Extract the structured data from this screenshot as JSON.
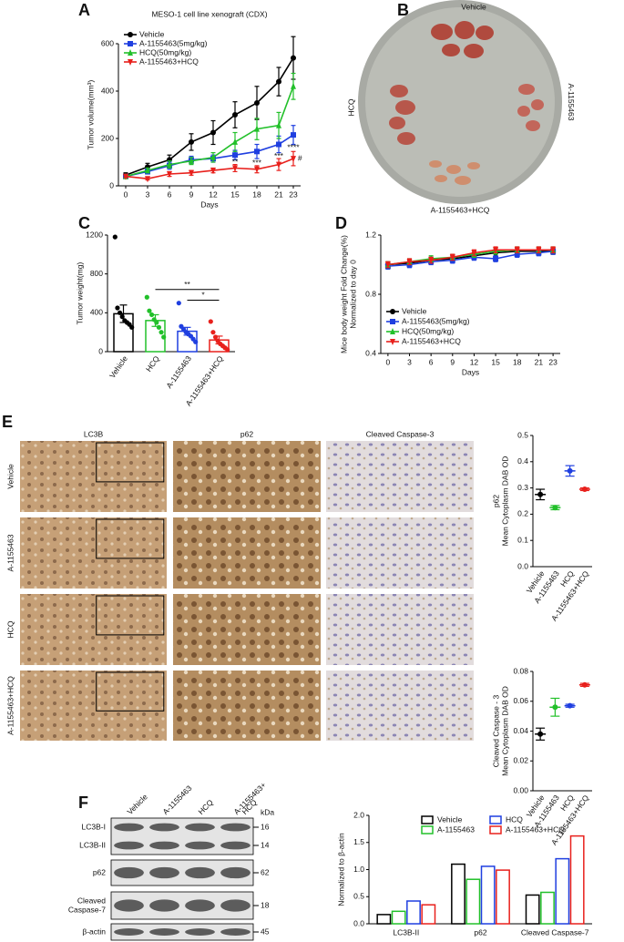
{
  "panel_labels": [
    "A",
    "B",
    "C",
    "D",
    "E",
    "F"
  ],
  "photo": {
    "labels": [
      "Vehicle",
      "A-1155463",
      "HCQ",
      "A-1155463+HCQ"
    ]
  },
  "ihc": {
    "columns": [
      "LC3B",
      "p62",
      "Cleaved Caspase-3"
    ],
    "rows": [
      "Vehicle",
      "A-1155463",
      "HCQ",
      "A-1155463+HCQ"
    ]
  },
  "blot": {
    "lanes": [
      [
        "Vehicle"
      ],
      [
        "A-1155463"
      ],
      [
        "HCQ"
      ],
      [
        "A-1155463+",
        "HCQ"
      ]
    ],
    "unit": "kDa",
    "rows": [
      {
        "bands": [
          {
            "label": [
              "LC3B-I"
            ],
            "kda": "16"
          },
          {
            "label": [
              "LC3B-II"
            ],
            "kda": "14"
          }
        ]
      },
      {
        "bands": [
          {
            "label": [
              "p62"
            ],
            "kda": "62"
          }
        ]
      },
      {
        "bands": [
          {
            "label": [
              "Cleaved",
              "Caspase-7"
            ],
            "kda": "18"
          }
        ]
      },
      {
        "bands": [
          {
            "label": [
              "β-actin"
            ],
            "kda": "45"
          }
        ]
      }
    ]
  },
  "chart_data": [
    {
      "type": "line",
      "title": "MESO-1 cell line xenograft (CDX)",
      "xlabel": "Days",
      "ylabel": [
        "Tumor volume(mm³)"
      ],
      "x": [
        0,
        3,
        6,
        9,
        12,
        15,
        18,
        21,
        23
      ],
      "xlim": [
        -1,
        24
      ],
      "xticks": [
        0,
        3,
        6,
        9,
        12,
        15,
        18,
        21,
        23
      ],
      "ylim": [
        0,
        600
      ],
      "yticks": [
        0,
        200,
        400,
        600
      ],
      "legend": "upper left",
      "series": [
        {
          "name": "Vehicle",
          "color": "#000000",
          "marker": "circle",
          "values": [
            45,
            80,
            110,
            185,
            225,
            300,
            350,
            440,
            540
          ],
          "errors": [
            10,
            15,
            20,
            35,
            50,
            55,
            70,
            60,
            90
          ]
        },
        {
          "name": "A-1155463(5mg/kg)",
          "color": "#1f3fe0",
          "marker": "square",
          "values": [
            40,
            60,
            85,
            110,
            115,
            130,
            145,
            175,
            215
          ],
          "errors": [
            5,
            10,
            15,
            15,
            15,
            20,
            30,
            35,
            40
          ]
        },
        {
          "name": "HCQ(50mg/kg)",
          "color": "#22c02a",
          "marker": "triangle",
          "values": [
            40,
            65,
            90,
            105,
            120,
            185,
            240,
            255,
            420
          ],
          "errors": [
            5,
            10,
            15,
            15,
            20,
            40,
            45,
            55,
            55
          ]
        },
        {
          "name": "A-1155463+HCQ",
          "color": "#e8201c",
          "marker": "triangle-down",
          "values": [
            40,
            30,
            50,
            55,
            65,
            75,
            70,
            90,
            115
          ],
          "errors": [
            5,
            5,
            10,
            10,
            10,
            15,
            15,
            25,
            30
          ]
        }
      ],
      "annotations": [
        {
          "text": "**",
          "x": 15,
          "y": 100
        },
        {
          "text": "***",
          "x": 18,
          "y": 95
        },
        {
          "text": "***",
          "x": 21,
          "y": 125
        },
        {
          "text": "****",
          "x": 23,
          "y": 160
        },
        {
          "text": "#",
          "x": 23.9,
          "y": 115
        }
      ]
    },
    {
      "type": "bar",
      "ylabel": [
        "Tumor weight(mg)"
      ],
      "categories": [
        "Vehicle",
        "HCQ",
        "A-1155463",
        "A-1155463+HCQ"
      ],
      "colors": [
        "#000000",
        "#22c02a",
        "#1f3fe0",
        "#e8201c"
      ],
      "ylim": [
        0,
        1200
      ],
      "yticks": [
        0,
        400,
        800,
        1200
      ],
      "values": [
        390,
        320,
        210,
        120
      ],
      "errors": [
        90,
        60,
        40,
        40
      ],
      "points": [
        [
          1180,
          450,
          400,
          360,
          320,
          300,
          280,
          250
        ],
        [
          560,
          420,
          380,
          330,
          300,
          250,
          200,
          150
        ],
        [
          500,
          260,
          230,
          200,
          180,
          160,
          130,
          100
        ],
        [
          310,
          200,
          150,
          110,
          80,
          60,
          40,
          20
        ]
      ],
      "comparisons": [
        {
          "text": "**",
          "between": [
            "HCQ",
            "A-1155463+HCQ"
          ],
          "y": 640
        },
        {
          "text": "*",
          "between": [
            "A-1155463",
            "A-1155463+HCQ"
          ],
          "y": 530
        }
      ]
    },
    {
      "type": "line",
      "xlabel": "Days",
      "ylabel": [
        "Mice body weight Fold Change(%)",
        "Normalized to day 0"
      ],
      "x": [
        0,
        3,
        6,
        9,
        12,
        15,
        18,
        21,
        23
      ],
      "xlim": [
        -1,
        24
      ],
      "xticks": [
        0,
        3,
        6,
        9,
        12,
        15,
        18,
        21,
        23
      ],
      "ylim": [
        0.4,
        1.2
      ],
      "yticks": [
        0.4,
        0.8,
        1.2
      ],
      "legend": "lower left",
      "series": [
        {
          "name": "Vehicle",
          "color": "#000000",
          "marker": "circle",
          "values": [
            1.0,
            1.01,
            1.03,
            1.04,
            1.06,
            1.08,
            1.09,
            1.09,
            1.09
          ],
          "errors": [
            0.02,
            0.02,
            0.02,
            0.02,
            0.02,
            0.02,
            0.02,
            0.02,
            0.02
          ]
        },
        {
          "name": "A-1155463(5mg/kg)",
          "color": "#1f3fe0",
          "marker": "square",
          "values": [
            0.99,
            1.0,
            1.02,
            1.03,
            1.05,
            1.04,
            1.07,
            1.08,
            1.09
          ],
          "errors": [
            0.02,
            0.02,
            0.02,
            0.02,
            0.02,
            0.02,
            0.02,
            0.02,
            0.02
          ]
        },
        {
          "name": "HCQ(50mg/kg)",
          "color": "#22c02a",
          "marker": "triangle",
          "values": [
            1.0,
            1.02,
            1.04,
            1.05,
            1.07,
            1.09,
            1.1,
            1.1,
            1.1
          ],
          "errors": [
            0.02,
            0.02,
            0.02,
            0.02,
            0.02,
            0.02,
            0.02,
            0.02,
            0.02
          ]
        },
        {
          "name": "A-1155463+HCQ",
          "color": "#e8201c",
          "marker": "triangle-down",
          "values": [
            1.0,
            1.02,
            1.03,
            1.05,
            1.08,
            1.1,
            1.1,
            1.1,
            1.1
          ],
          "errors": [
            0.02,
            0.02,
            0.02,
            0.02,
            0.02,
            0.02,
            0.02,
            0.02,
            0.02
          ]
        }
      ]
    },
    {
      "type": "scatter",
      "ylabel": [
        "p62",
        "Mean Cytoplasm DAB OD"
      ],
      "categories": [
        "Vehicle",
        "A-1155463",
        "HCQ",
        "A-1155463+HCQ"
      ],
      "colors": [
        "#000000",
        "#22c02a",
        "#1f3fe0",
        "#e8201c"
      ],
      "ylim": [
        0,
        0.5
      ],
      "yticks": [
        {
          "value": 0,
          "label": "0.0"
        },
        0.1,
        0.2,
        0.3,
        0.4,
        0.5
      ],
      "values": [
        0.275,
        0.225,
        0.365,
        0.295
      ],
      "errors": [
        0.02,
        0.008,
        0.02,
        0.005
      ]
    },
    {
      "type": "scatter",
      "ylabel": [
        "Cleaved  Caspase - 3",
        "Mean Cytoplasm DAB OD"
      ],
      "categories": [
        "Vehicle",
        "A-1155463",
        "HCQ",
        "A-1155463+HCQ"
      ],
      "colors": [
        "#000000",
        "#22c02a",
        "#1f3fe0",
        "#e8201c"
      ],
      "ylim": [
        0,
        0.08
      ],
      "yticks": [
        {
          "value": 0,
          "label": "0.00"
        },
        0.02,
        0.04,
        0.06,
        0.08
      ],
      "values": [
        0.038,
        0.056,
        0.057,
        0.071
      ],
      "errors": [
        0.004,
        0.006,
        0.001,
        0.001
      ]
    },
    {
      "type": "bar",
      "ylabel": [
        "Normalized to β-actin"
      ],
      "categories": [
        "LC3B-II",
        "p62",
        "Cleaved Caspase-7"
      ],
      "ylim": [
        0,
        2.0
      ],
      "yticks": [
        {
          "value": 0,
          "label": "0.0"
        },
        0.5,
        {
          "value": 1,
          "label": "1.0"
        },
        1.5,
        {
          "value": 2,
          "label": "2.0"
        }
      ],
      "legend": "upper center",
      "series": [
        {
          "name": "Vehicle",
          "color": "#000000",
          "values": [
            0.17,
            1.1,
            0.53
          ]
        },
        {
          "name": "A-1155463",
          "color": "#22c02a",
          "values": [
            0.23,
            0.82,
            0.58
          ]
        },
        {
          "name": "HCQ",
          "color": "#1f3fe0",
          "values": [
            0.42,
            1.06,
            1.2
          ]
        },
        {
          "name": "A-1155463+HCQ",
          "color": "#e8201c",
          "values": [
            0.35,
            0.99,
            1.62
          ]
        }
      ]
    }
  ]
}
